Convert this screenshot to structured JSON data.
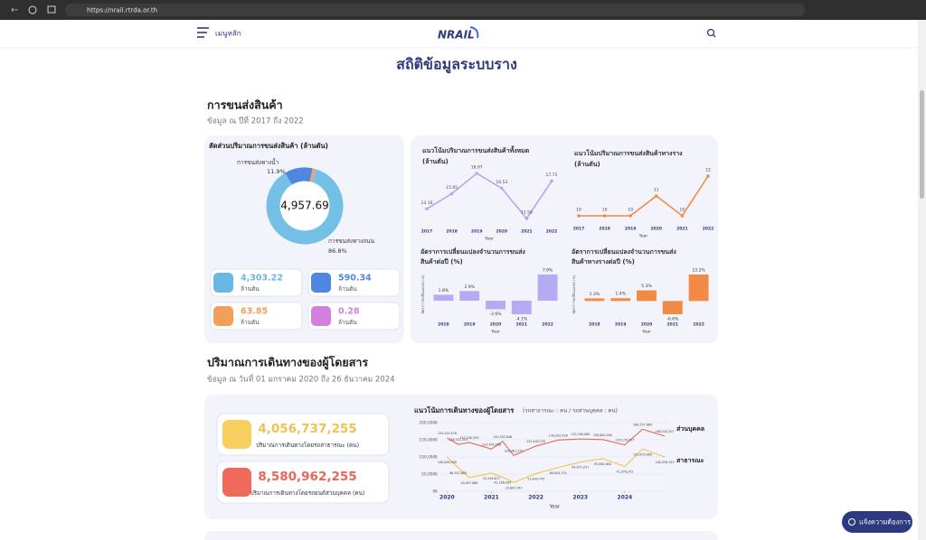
{
  "browser": {
    "url": "https://nrail.rtrda.or.th"
  },
  "header": {
    "menu": "เมนูหลัก",
    "logo": "NRAIL"
  },
  "title": "สถิติข้อมูลระบบราง",
  "freight": {
    "heading": "การขนส่งสินค้า",
    "subtitle": "ข้อมูล ณ ปีที่ 2017 ถึง 2022",
    "share": {
      "type": "pie",
      "title": "สัดส่วนปริมาณการขนส่งสินค้า (ล้านตัน)",
      "total": "4,957.69",
      "categories": [
        "การขนส่งทางถนน",
        "การขนส่งทางน้ำ",
        null,
        null
      ],
      "values": [
        86.8,
        11.9,
        1.3,
        0.2
      ],
      "value_labels": [
        "86.8%",
        "11.9%",
        null,
        null
      ],
      "colors": [
        "#74bfe6",
        "#4f86e0",
        "#f0a561",
        "#d98be0"
      ]
    },
    "stats": [
      {
        "value": "4,303.22",
        "unit": "ล้านตัน",
        "color": "#6ab7e3"
      },
      {
        "value": "590.34",
        "unit": "ล้านตัน",
        "color": "#4f86e0"
      },
      {
        "value": "63.85",
        "unit": "ล้านตัน",
        "color": "#f0a05a"
      },
      {
        "value": "0.28",
        "unit": "ล้านตัน",
        "color": "#d47ee0"
      }
    ],
    "trend_total": {
      "type": "line",
      "title": [
        "แนวโน้มปริมาณการขนส่งสินค้าทั้งหมด",
        "(ล้านตัน)"
      ],
      "categories": [
        "2017",
        "2018",
        "2019",
        "2020",
        "2021",
        "2022"
      ],
      "values": [
        13.16,
        15.65,
        18.97,
        16.53,
        11.58,
        17.71
      ],
      "xlabel": "Year",
      "color": "#b9a6ef"
    },
    "trend_rail": {
      "type": "line",
      "title": [
        "แนวโน้มปริมาณการขนส่งสินค้าทางราง",
        "(ล้านตัน)"
      ],
      "categories": [
        "2017",
        "2018",
        "2019",
        "2020",
        "2021",
        "2022"
      ],
      "values": [
        10,
        10,
        10,
        11,
        10,
        12
      ],
      "xlabel": "Year",
      "color": "#f08a45"
    },
    "change_total": {
      "type": "bar",
      "title": [
        "อัตราการเปลี่ยนแปลงจำนวนการขนส่ง",
        "สินค้าต่อปี (%)"
      ],
      "ylabel": "อัตราการเปลี่ยนแปลง (%)",
      "categories": [
        "2018",
        "2019",
        "2020",
        "2021",
        "2022"
      ],
      "values": [
        1.8,
        2.9,
        -2.6,
        -4.1,
        7.9
      ],
      "value_labels": [
        "1.8%",
        "2.9%",
        "-2.6%",
        "-4.1%",
        "7.9%"
      ],
      "xlabel": "Year",
      "color": "#b3acf4"
    },
    "change_rail": {
      "type": "bar",
      "title": [
        "อัตราการเปลี่ยนแปลงจำนวนการขนส่ง",
        "สินค้าทางรางต่อปี (%)"
      ],
      "ylabel": "อัตราการเปลี่ยนแปลง (%)",
      "categories": [
        "2018",
        "2019",
        "2020",
        "2021",
        "2022"
      ],
      "values": [
        1.3,
        1.4,
        5.3,
        -6.6,
        13.2
      ],
      "value_labels": [
        "1.3%",
        "1.4%",
        "5.3%",
        "-6.6%",
        "13.2%"
      ],
      "xlabel": "Year",
      "color": "#f08a45"
    }
  },
  "passenger": {
    "heading": "ปริมาณการเดินทางของผู้โดยสาร",
    "subtitle": "ข้อมูล ณ วันที่ 01 มกราคม 2020 ถึง 26 ธันวาคม 2024",
    "stats": [
      {
        "value": "4,056,737,255",
        "label": "ปริมาณการเดินทางโดยรถสาธารณะ (คน)",
        "color": "#f2c14e",
        "icon": "#f7cf5e"
      },
      {
        "value": "8,580,962,255",
        "label": "ปริมาณการเดินทางโดยรถยนต์ส่วนบุคคล (คน)",
        "color": "#e9645a",
        "icon": "#ee6b5b"
      }
    ],
    "chart": {
      "type": "line",
      "title": "แนวโน้มการเดินทางของผู้โดยสาร",
      "subtitle": "(รถสาธารณะ : คน  /  รถส่วนบุคคล : คน)",
      "x": [
        2020.0,
        2020.25,
        2020.5,
        2021.0,
        2021.25,
        2021.5,
        2022.0,
        2022.5,
        2023.0,
        2023.5,
        2024.0,
        2024.4,
        2024.9
      ],
      "xlim": [
        2019.85,
        2025.0
      ],
      "xticks": [
        2020,
        2021,
        2022,
        2023,
        2024
      ],
      "xlabel": "Year",
      "ylim": [
        0,
        200000000
      ],
      "yticks": [
        {
          "value": 0,
          "label": "0K"
        },
        {
          "value": 50000000,
          "label": "50,000K"
        },
        {
          "value": 100000000,
          "label": "100,000K"
        },
        {
          "value": 150000000,
          "label": "150,000K"
        },
        {
          "value": 200000000,
          "label": "200,000K"
        }
      ],
      "series": [
        {
          "name": "ส่วนบุคคล",
          "color": "#e8645c",
          "values": [
            155455478,
            136531215,
            142240393,
            122970508,
            145202646,
            104361373,
            131449745,
            149292426,
            152300000,
            150600000,
            135179527,
            180557869,
            160543507
          ],
          "value_labels": [
            "155,455,478",
            "136,531,215",
            "142,240,393",
            "122,970,508",
            "145,202,646",
            "104,361,373",
            "131,449,745",
            "149,292,426",
            "152,300,000",
            "150,600,000",
            "135,179,527",
            "180,557,869",
            "160,543,507"
          ]
        },
        {
          "name": "สาธารณะ",
          "color": "#f3c24f",
          "values": [
            100000000,
            68927609,
            40097866,
            52416877,
            41186569,
            25607543,
            51449745,
            69004174,
            84972231,
            95000000,
            71976252,
            122670989,
            100030549
          ],
          "value_labels": [
            "100,000,000",
            "68,927,609",
            "40,097,866",
            "52,416,877",
            "41,186,569",
            "25,607,543",
            "51,449,745",
            "69,004,174",
            "84,972,231",
            "95,000,000",
            "71,976,252",
            "122,670,989",
            "100,030,549"
          ]
        }
      ]
    }
  },
  "button": "แจ้งความต้องการ"
}
